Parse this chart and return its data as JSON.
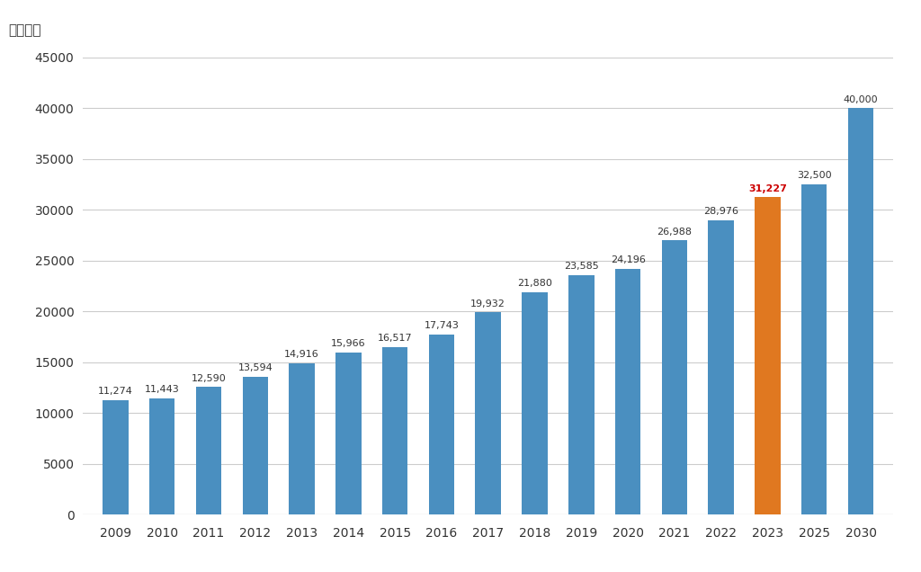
{
  "categories": [
    "2009",
    "2010",
    "2011",
    "2012",
    "2013",
    "2014",
    "2015",
    "2016",
    "2017",
    "2018",
    "2019",
    "2020",
    "2021",
    "2022",
    "2023",
    "2025",
    "2030"
  ],
  "values": [
    11274,
    11443,
    12590,
    13594,
    14916,
    15966,
    16517,
    17743,
    19932,
    21880,
    23585,
    24196,
    26988,
    28976,
    31227,
    32500,
    40000
  ],
  "bar_colors": [
    "#4a8fc0",
    "#4a8fc0",
    "#4a8fc0",
    "#4a8fc0",
    "#4a8fc0",
    "#4a8fc0",
    "#4a8fc0",
    "#4a8fc0",
    "#4a8fc0",
    "#4a8fc0",
    "#4a8fc0",
    "#4a8fc0",
    "#4a8fc0",
    "#4a8fc0",
    "#e07820",
    "#4a8fc0",
    "#4a8fc0"
  ],
  "label_colors": [
    "#333333",
    "#333333",
    "#333333",
    "#333333",
    "#333333",
    "#333333",
    "#333333",
    "#333333",
    "#333333",
    "#333333",
    "#333333",
    "#333333",
    "#333333",
    "#333333",
    "#cc0000",
    "#333333",
    "#333333"
  ],
  "ylabel": "（億円）",
  "ylim": [
    0,
    45000
  ],
  "yticks": [
    0,
    5000,
    10000,
    15000,
    20000,
    25000,
    30000,
    35000,
    40000,
    45000
  ],
  "background_color": "#ffffff",
  "grid_color": "#cccccc",
  "bar_width": 0.55,
  "label_fontsize": 8.0,
  "tick_fontsize": 10,
  "ylabel_fontsize": 11
}
